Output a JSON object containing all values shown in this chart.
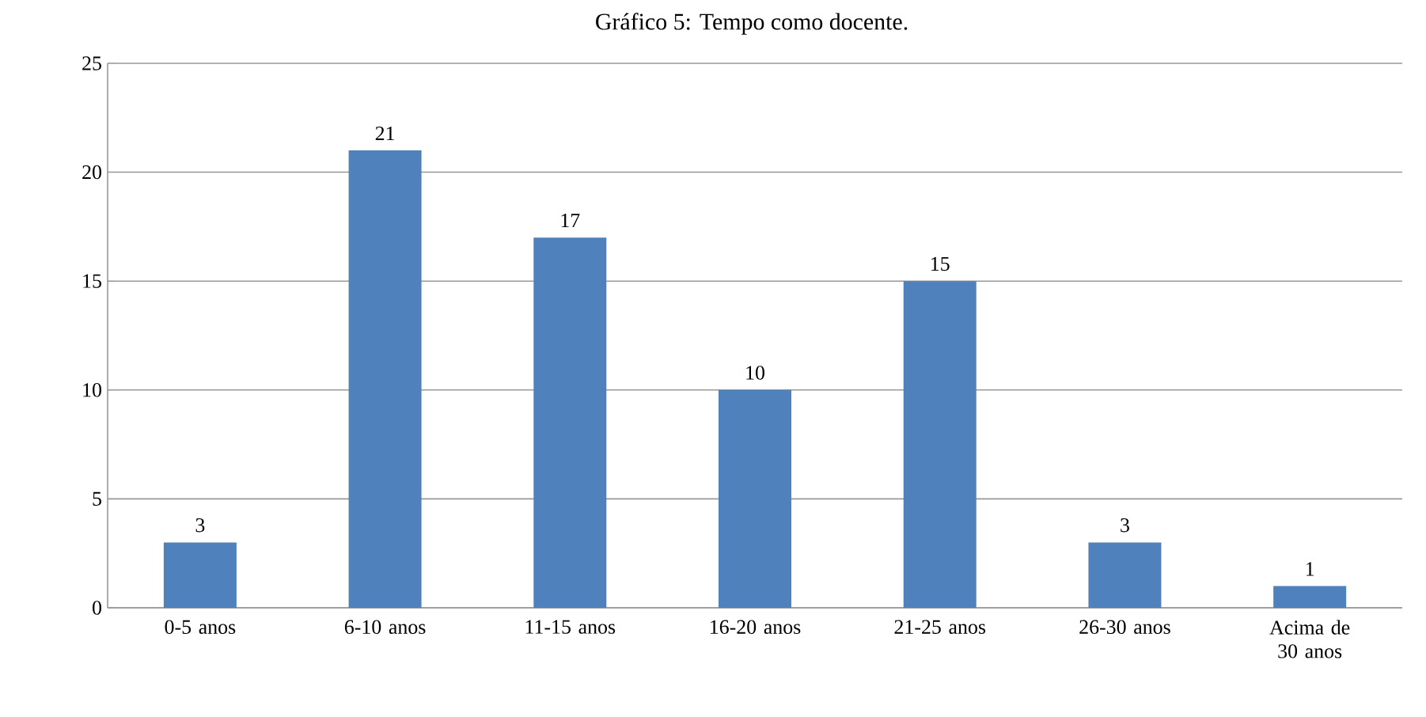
{
  "chart_data": {
    "type": "bar",
    "title": "Gráfico 5: Tempo como docente.",
    "categories": [
      "0-5 anos",
      "6-10 anos",
      "11-15 anos",
      "16-20 anos",
      "21-25 anos",
      "26-30 anos",
      "Acima de 30 anos"
    ],
    "values": [
      3,
      21,
      17,
      10,
      15,
      3,
      1
    ],
    "color": "#4f81bd",
    "ylim": [
      0,
      25
    ],
    "yticks": [
      0,
      5,
      10,
      15,
      20,
      25
    ],
    "grid": "y",
    "data_labels": true
  }
}
